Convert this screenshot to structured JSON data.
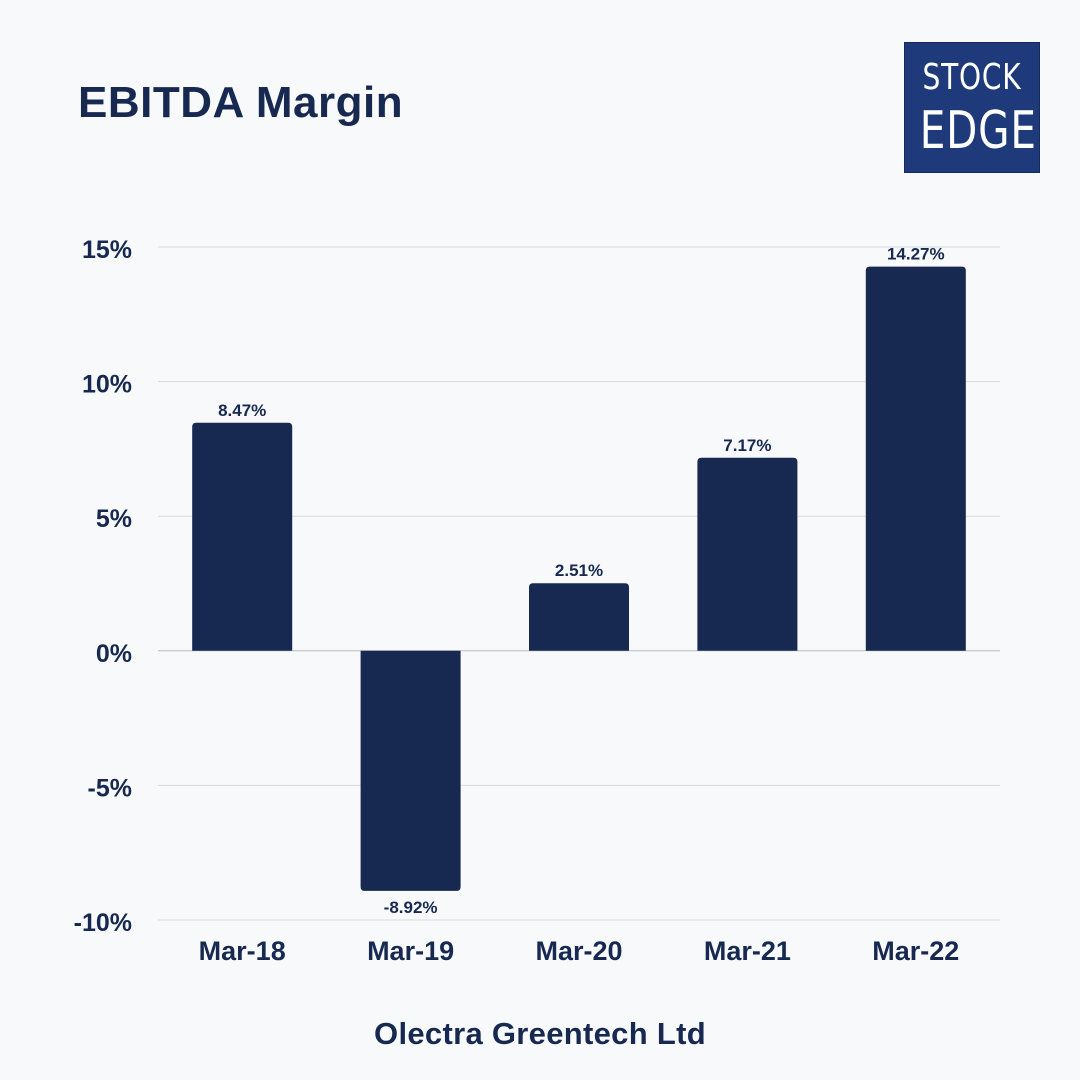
{
  "header": {
    "title": "EBITDA Margin"
  },
  "logo": {
    "line1": "STOCK",
    "line2": "EDGE"
  },
  "footer": {
    "company": "Olectra Greentech Ltd"
  },
  "colors": {
    "bar": "#172951",
    "text": "#172951",
    "grid": "#d7d9de",
    "background": "#f8f9fa",
    "logo_bg": "#1f3a7a"
  },
  "chart_data": {
    "type": "bar",
    "title": "EBITDA Margin",
    "xlabel": "",
    "ylabel": "",
    "categories": [
      "Mar-18",
      "Mar-19",
      "Mar-20",
      "Mar-21",
      "Mar-22"
    ],
    "values": [
      8.47,
      -8.92,
      2.51,
      7.17,
      14.27
    ],
    "data_labels": [
      "8.47%",
      "-8.92%",
      "2.51%",
      "7.17%",
      "14.27%"
    ],
    "ylim": [
      -10,
      15
    ],
    "yticks": [
      15,
      10,
      5,
      0,
      -5,
      -10
    ],
    "ytick_labels": [
      "15%",
      "10%",
      "5%",
      "0%",
      "-5%",
      "-10%"
    ],
    "grid": true,
    "legend": "none"
  }
}
